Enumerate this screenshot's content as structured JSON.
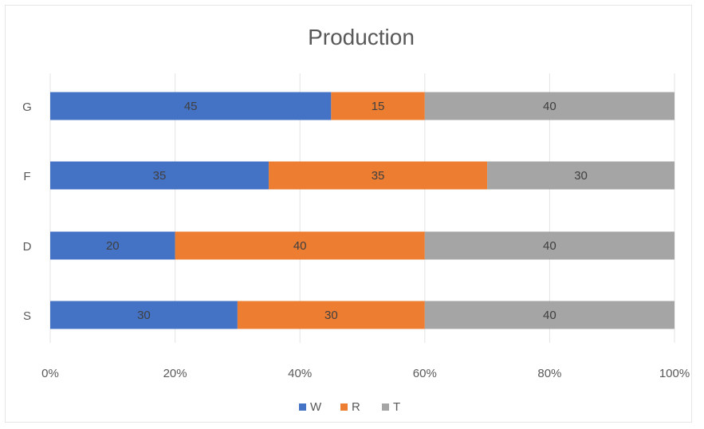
{
  "chart_data": {
    "type": "bar",
    "orientation": "horizontal",
    "stacked": "percent",
    "title": "Production",
    "categories": [
      "G",
      "F",
      "D",
      "S"
    ],
    "series": [
      {
        "name": "W",
        "values": [
          45,
          35,
          20,
          30
        ],
        "color": "#4472C4"
      },
      {
        "name": "R",
        "values": [
          15,
          35,
          40,
          30
        ],
        "color": "#ED7D31"
      },
      {
        "name": "T",
        "values": [
          40,
          30,
          40,
          40
        ],
        "color": "#A5A5A5"
      }
    ],
    "xlim": [
      0,
      100
    ],
    "x_ticks": [
      "0%",
      "20%",
      "40%",
      "60%",
      "80%",
      "100%"
    ],
    "grid": true,
    "legend_position": "bottom",
    "data_labels": true
  }
}
